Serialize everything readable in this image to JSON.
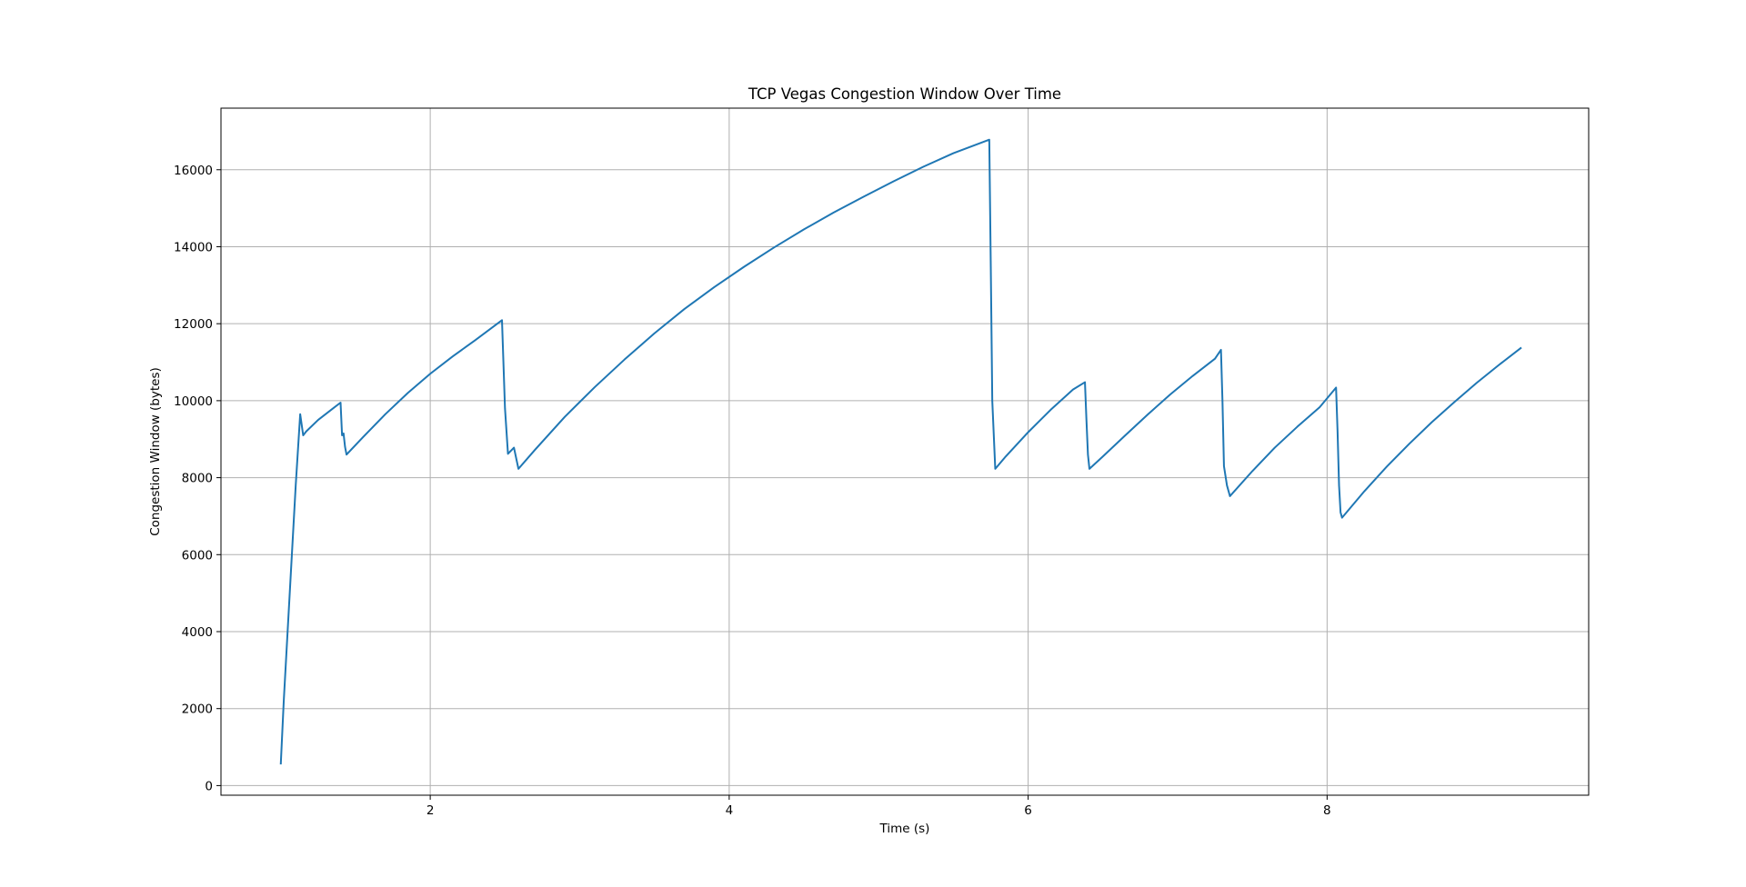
{
  "chart_data": {
    "type": "line",
    "title": "TCP Vegas Congestion Window Over Time",
    "xlabel": "Time (s)",
    "ylabel": "Congestion Window (bytes)",
    "xlim": [
      0.6,
      9.75
    ],
    "ylim": [
      -250,
      17600
    ],
    "xticks": [
      2,
      4,
      6,
      8
    ],
    "yticks": [
      0,
      2000,
      4000,
      6000,
      8000,
      10000,
      12000,
      14000,
      16000
    ],
    "grid": true,
    "colors": {
      "line": "#1f77b4",
      "grid": "#b0b0b0",
      "axes": "#000000"
    },
    "series": [
      {
        "x": [
          1.0,
          1.02,
          1.06,
          1.1,
          1.13,
          1.15,
          1.17,
          1.25,
          1.35,
          1.4,
          1.41,
          1.42,
          1.43,
          1.44,
          1.55,
          1.7,
          1.85,
          2.0,
          2.15,
          2.3,
          2.48,
          2.5,
          2.52,
          2.56,
          2.59,
          2.7,
          2.9,
          3.1,
          3.3,
          3.5,
          3.7,
          3.9,
          4.1,
          4.3,
          4.5,
          4.7,
          4.9,
          5.1,
          5.3,
          5.5,
          5.74,
          5.75,
          5.76,
          5.78,
          5.85,
          6.0,
          6.15,
          6.3,
          6.38,
          6.39,
          6.4,
          6.41,
          6.5,
          6.65,
          6.8,
          6.95,
          7.1,
          7.25,
          7.29,
          7.3,
          7.31,
          7.33,
          7.35,
          7.5,
          7.65,
          7.8,
          7.95,
          8.06,
          8.07,
          8.08,
          8.09,
          8.1,
          8.25,
          8.4,
          8.55,
          8.7,
          8.85,
          9.0,
          9.15,
          9.3
        ],
        "y": [
          550,
          2200,
          5000,
          7800,
          9650,
          9100,
          9200,
          9500,
          9800,
          9950,
          9100,
          9150,
          8800,
          8600,
          9050,
          9650,
          10200,
          10700,
          11150,
          11570,
          12090,
          9800,
          8620,
          8780,
          8230,
          8720,
          9580,
          10350,
          11070,
          11750,
          12380,
          12950,
          13480,
          13980,
          14450,
          14890,
          15300,
          15700,
          16080,
          16430,
          16780,
          13500,
          10000,
          8230,
          8550,
          9180,
          9760,
          10290,
          10480,
          9500,
          8600,
          8230,
          8550,
          9100,
          9640,
          10160,
          10640,
          11090,
          11320,
          10000,
          8300,
          7800,
          7520,
          8170,
          8780,
          9320,
          9830,
          10340,
          9200,
          7800,
          7100,
          6960,
          7650,
          8290,
          8880,
          9440,
          9960,
          10460,
          10930,
          11380
        ]
      }
    ]
  }
}
